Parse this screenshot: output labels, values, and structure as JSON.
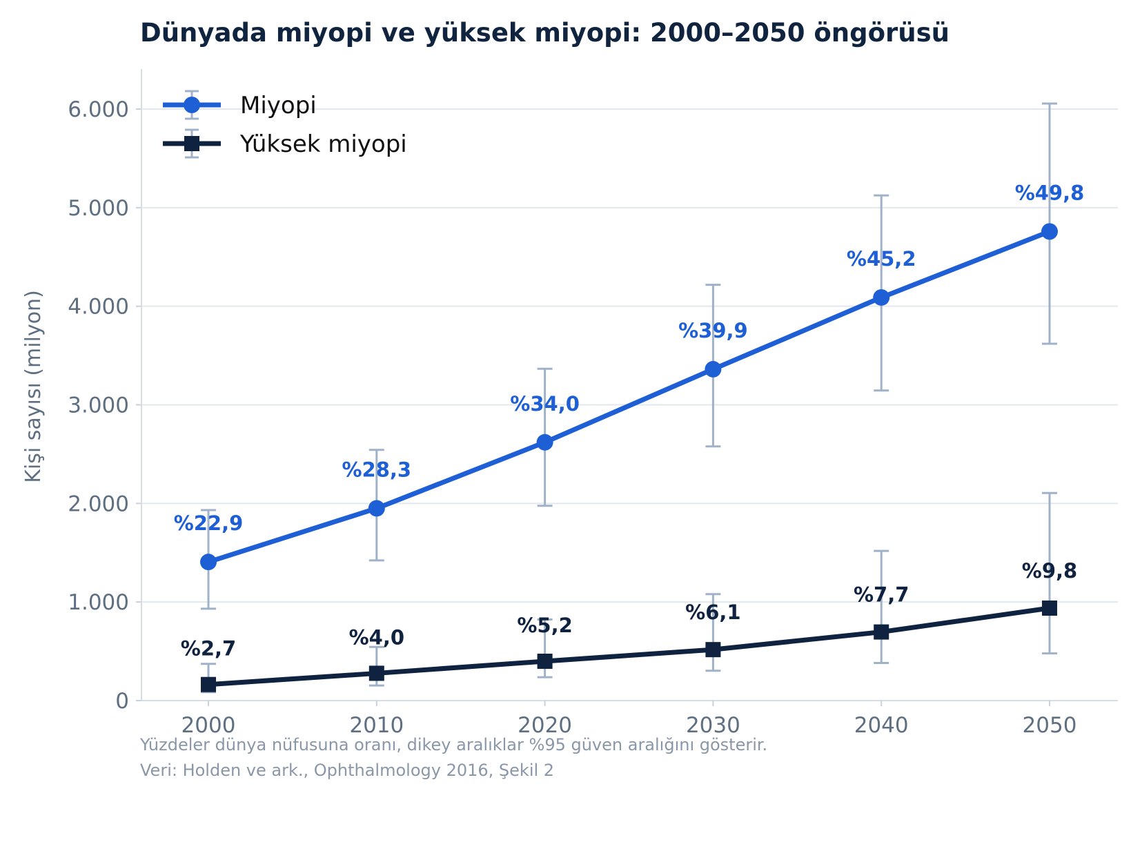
{
  "chart_data": {
    "type": "line",
    "title": "Dünyada miyopi ve yüksek miyopi: 2000–2050 öngörüsü",
    "xlabel": "",
    "ylabel": "Kişi sayısı (milyon)",
    "x": [
      2000,
      2010,
      2020,
      2030,
      2040,
      2050
    ],
    "x_tick_labels": [
      "2000",
      "2010",
      "2020",
      "2030",
      "2040",
      "2050"
    ],
    "ylim": [
      0,
      6400
    ],
    "y_ticks": [
      0,
      1000,
      2000,
      3000,
      4000,
      5000,
      6000
    ],
    "y_tick_labels": [
      "0",
      "1.000",
      "2.000",
      "3.000",
      "4.000",
      "5.000",
      "6.000"
    ],
    "grid": "horizontal",
    "legend_position": "top-left",
    "series": [
      {
        "name": "Miyopi",
        "color": "#1f5fd6",
        "marker": "circle",
        "values": [
          1406,
          1950,
          2620,
          3361,
          4089,
          4758
        ],
        "ci_low": [
          932,
          1422,
          1976,
          2578,
          3145,
          3620
        ],
        "ci_high": [
          1932,
          2543,
          3366,
          4217,
          5124,
          6056
        ],
        "labels": [
          "%22,9",
          "%28,3",
          "%34,0",
          "%39,9",
          "%45,2",
          "%49,8"
        ]
      },
      {
        "name": "Yüksek miyopi",
        "color": "#0f2340",
        "marker": "square",
        "values": [
          163,
          277,
          399,
          517,
          696,
          938
        ],
        "ci_low": [
          86,
          153,
          237,
          303,
          382,
          479
        ],
        "ci_high": [
          373,
          544,
          823,
          1080,
          1518,
          2106
        ],
        "labels": [
          "%2,7",
          "%4,0",
          "%5,2",
          "%6,1",
          "%7,7",
          "%9,8"
        ]
      }
    ],
    "errorbar_color": "#9fb2c8",
    "grid_color": "#e2e8ee",
    "notes": [
      "Yüzdeler dünya nüfusuna oranı, dikey aralıklar %95 güven aralığını gösterir.",
      "Veri: Holden ve ark., Ophthalmology 2016, Şekil 2"
    ]
  }
}
